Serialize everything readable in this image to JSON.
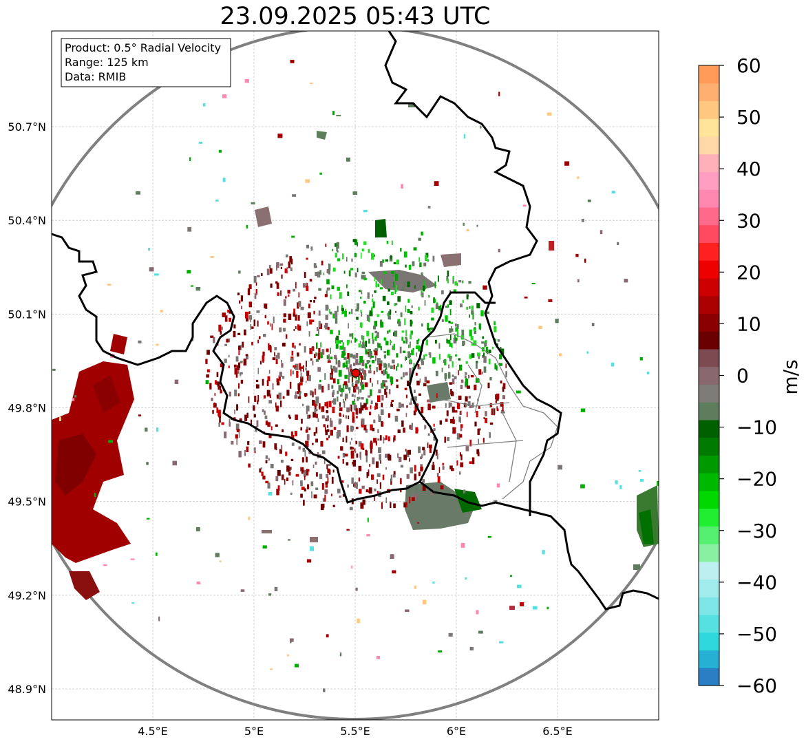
{
  "title": "23.09.2025 05:43 UTC",
  "info_box": {
    "product": "Product: 0.5° Radial Velocity",
    "range": "Range: 125 km",
    "data": "Data: RMIB"
  },
  "axes": {
    "lat_labels": [
      "50.7°N",
      "50.4°N",
      "50.1°N",
      "49.8°N",
      "49.5°N",
      "49.2°N",
      "48.9°N"
    ],
    "lat_values": [
      50.7,
      50.4,
      50.1,
      49.8,
      49.5,
      49.2,
      48.9
    ],
    "lon_labels": [
      "4.5°E",
      "5°E",
      "5.5°E",
      "6°E",
      "6.5°E"
    ],
    "lon_values": [
      4.5,
      5.0,
      5.5,
      6.0,
      6.5
    ],
    "lon_range": [
      4.0,
      7.0
    ],
    "lat_range": [
      48.8,
      51.0
    ]
  },
  "radar": {
    "lon": 5.505,
    "lat": 49.914,
    "range_km": 125
  },
  "colorbar": {
    "label": "m/s",
    "ticks": [
      "60",
      "50",
      "40",
      "30",
      "20",
      "10",
      "0",
      "−10",
      "−20",
      "−30",
      "−40",
      "−50",
      "−60"
    ],
    "tick_values": [
      60,
      50,
      40,
      30,
      20,
      10,
      0,
      -10,
      -20,
      -30,
      -40,
      -50,
      -60
    ],
    "min": -60,
    "max": 60,
    "colors": [
      "#2a7fc4",
      "#25b0d4",
      "#2fd8dc",
      "#56e0e0",
      "#7ee6e6",
      "#a0ecec",
      "#bdeff0",
      "#88f0a0",
      "#55f070",
      "#20ee30",
      "#00d800",
      "#00b800",
      "#009a00",
      "#007a00",
      "#006000",
      "#5e7d5c",
      "#7e7c78",
      "#8a6870",
      "#7e4a52",
      "#6a0000",
      "#8a0000",
      "#aa0000",
      "#cc0000",
      "#ee0000",
      "#ff2020",
      "#ff4a60",
      "#ff6a8a",
      "#ff88b0",
      "#ff9ec0",
      "#ffb0b8",
      "#ffd8a8",
      "#ffe49a",
      "#ffc880",
      "#ffb070",
      "#ff9a58"
    ]
  }
}
